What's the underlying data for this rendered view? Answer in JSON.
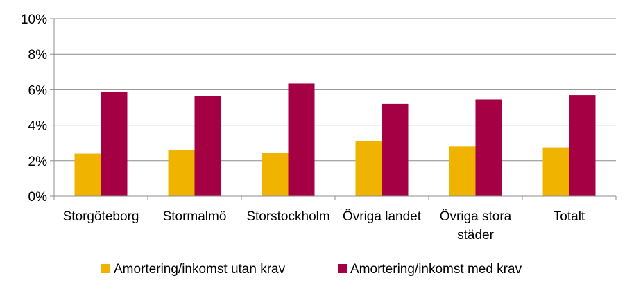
{
  "chart_data": {
    "type": "bar",
    "categories": [
      [
        "Storgöteborg"
      ],
      [
        "Stormalmö"
      ],
      [
        "Storstockholm"
      ],
      [
        "Övriga landet"
      ],
      [
        "Övriga stora",
        "städer"
      ],
      [
        "Totalt"
      ]
    ],
    "series": [
      {
        "name": "Amortering/inkomst utan krav",
        "color": "#F0B400",
        "values": [
          2.4,
          2.6,
          2.45,
          3.1,
          2.8,
          2.75
        ]
      },
      {
        "name": "Amortering/inkomst med krav",
        "color": "#A50044",
        "values": [
          5.9,
          5.65,
          6.35,
          5.2,
          5.45,
          5.7
        ]
      }
    ],
    "ylim": [
      0,
      10
    ],
    "yticks": [
      0,
      2,
      4,
      6,
      8,
      10
    ],
    "ytick_labels": [
      "0%",
      "2%",
      "4%",
      "6%",
      "8%",
      "10%"
    ],
    "grid": true,
    "legend_position": "bottom"
  }
}
